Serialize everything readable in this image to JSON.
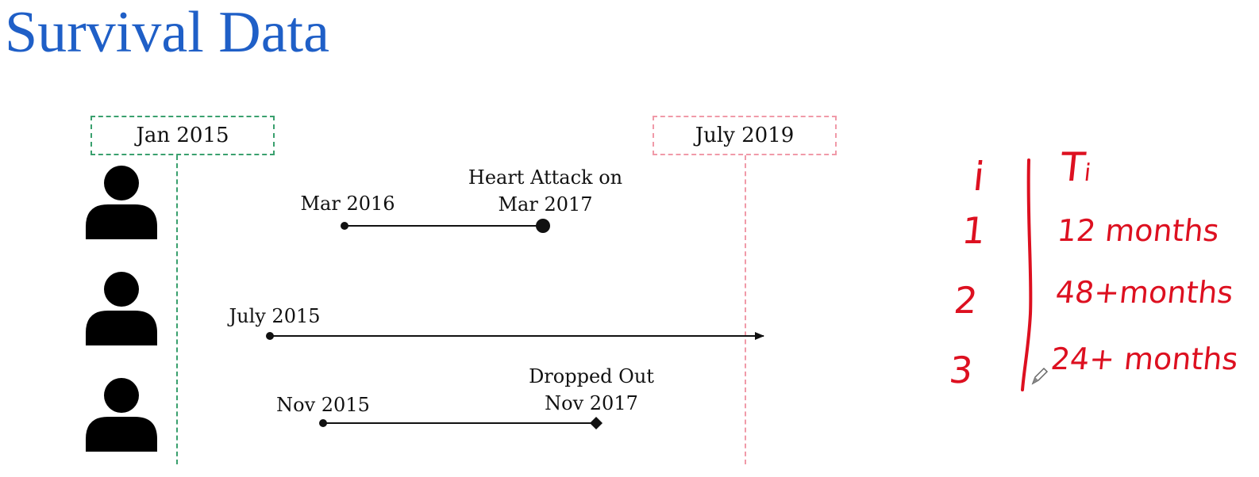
{
  "title": "Survival Data",
  "study_start": "Jan 2015",
  "study_end": "July 2019",
  "subjects": [
    {
      "start": "Mar 2016",
      "event_line1": "Heart Attack on",
      "event_line2": "Mar 2017",
      "end_marker": "circle"
    },
    {
      "start": "July 2015",
      "event_line1": "",
      "event_line2": "",
      "end_marker": "arrow"
    },
    {
      "start": "Nov 2015",
      "event_line1": "Dropped Out",
      "event_line2": "Nov 2017",
      "end_marker": "diamond"
    }
  ],
  "table": {
    "header_index": "i",
    "header_time": "T",
    "header_time_subscript": "i",
    "rows": [
      {
        "index": "1",
        "time": "12 months"
      },
      {
        "index": "2",
        "time": "48+months"
      },
      {
        "index": "3",
        "time": "24+ months"
      }
    ]
  },
  "colors": {
    "title": "#1f5fc7",
    "start_box": "#3aa06e",
    "end_box": "#f09aa8",
    "handwriting": "#dd1020",
    "timeline": "#111111"
  }
}
